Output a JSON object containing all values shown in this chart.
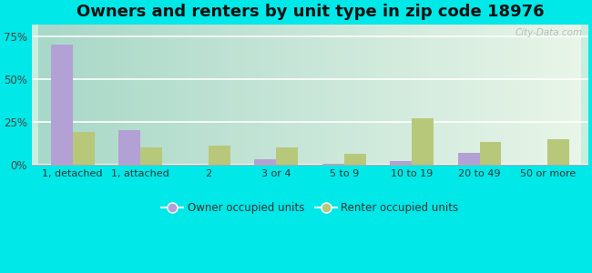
{
  "title": "Owners and renters by unit type in zip code 18976",
  "categories": [
    "1, detached",
    "1, attached",
    "2",
    "3 or 4",
    "5 to 9",
    "10 to 19",
    "20 to 49",
    "50 or more"
  ],
  "owner_values": [
    70.0,
    20.0,
    0.0,
    3.0,
    0.5,
    2.0,
    7.0,
    0.0
  ],
  "renter_values": [
    19.0,
    10.0,
    11.0,
    10.0,
    6.0,
    27.0,
    13.0,
    15.0
  ],
  "owner_color": "#b3a0d4",
  "renter_color": "#b8c87a",
  "background_color": "#00e8e8",
  "title_fontsize": 13,
  "yticks": [
    0,
    25,
    50,
    75
  ],
  "ylim": [
    0,
    82
  ],
  "bar_width": 0.32,
  "legend_owner": "Owner occupied units",
  "legend_renter": "Renter occupied units",
  "watermark": "City-Data.com",
  "grad_left": "#a8d8c8",
  "grad_right": "#e8f5e8"
}
